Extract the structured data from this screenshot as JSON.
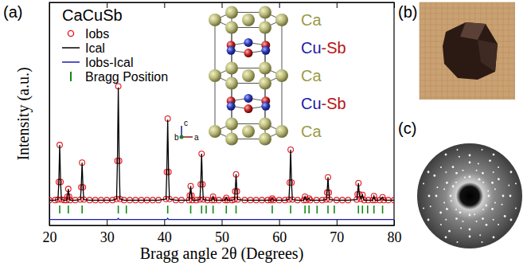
{
  "chart_data": {
    "type": "line",
    "title": "CaCuSb",
    "x_label": "Bragg angle 2θ (Degrees)",
    "y_label": "Intensity (a.u.)",
    "panel_labels": [
      "(a)",
      "(b)",
      "(c)"
    ],
    "x": [
      20,
      21,
      21.5,
      21.65,
      21.8,
      21.95,
      22.1,
      22.6,
      23.0,
      23.15,
      23.3,
      23.45,
      23.6,
      24.5,
      25.4,
      25.55,
      25.7,
      25.85,
      26.0,
      27,
      28,
      29,
      30,
      31,
      31.7,
      31.85,
      32.0,
      32.15,
      32.3,
      33,
      34,
      35,
      36,
      37,
      38,
      39,
      40.3,
      40.45,
      40.6,
      40.75,
      40.9,
      42,
      43,
      44.3,
      44.45,
      44.6,
      44.75,
      44.9,
      45.6,
      46.2,
      46.35,
      46.5,
      46.65,
      46.8,
      47.5,
      48.3,
      48.5,
      48.7,
      49.5,
      50.6,
      50.8,
      51.0,
      51.8,
      52.2,
      52.35,
      52.5,
      52.65,
      52.8,
      54,
      55,
      56,
      57,
      58,
      58.6,
      58.8,
      59.0,
      60,
      61,
      61.7,
      61.85,
      62.0,
      62.15,
      62.3,
      63.2,
      64.3,
      64.5,
      64.7,
      65.2,
      65.4,
      66.5,
      67.5,
      68.2,
      68.35,
      68.5,
      68.65,
      68.8,
      70,
      71,
      72,
      73.5,
      73.65,
      73.8,
      73.95,
      74.2,
      74.5,
      74.8,
      75.5,
      76.3,
      76.5,
      76.7,
      77.5,
      78.0,
      78.2,
      79,
      80
    ],
    "series": [
      {
        "name": "Iobs",
        "type": "scatter",
        "marker": "circle",
        "color": "#e0141e",
        "values": [
          3,
          3,
          4,
          34,
          97,
          34,
          4,
          3,
          3,
          9,
          22,
          9,
          3,
          3,
          4,
          25,
          67,
          25,
          4,
          3,
          3,
          3,
          3,
          3,
          5,
          70,
          197,
          70,
          5,
          3,
          3,
          3,
          3,
          3,
          3,
          3,
          5,
          51,
          142,
          51,
          5,
          3,
          3,
          3,
          11,
          27,
          11,
          3,
          3,
          4,
          30,
          82,
          30,
          4,
          3,
          3,
          9,
          3,
          3,
          3,
          7,
          3,
          3,
          4,
          18,
          47,
          18,
          4,
          3,
          3,
          3,
          3,
          3,
          3,
          6,
          3,
          3,
          3,
          4,
          33,
          89,
          33,
          4,
          3,
          3,
          9,
          3,
          6,
          3,
          3,
          3,
          4,
          16,
          42,
          16,
          4,
          3,
          3,
          3,
          4,
          13,
          32,
          13,
          5,
          12,
          3,
          3,
          3,
          10,
          3,
          3,
          8,
          3,
          3,
          3
        ]
      },
      {
        "name": "Ical",
        "type": "line",
        "color": "#000000",
        "values": [
          3,
          3,
          4,
          34,
          97,
          34,
          4,
          3,
          3,
          9,
          22,
          9,
          3,
          3,
          4,
          25,
          67,
          25,
          4,
          3,
          3,
          3,
          3,
          3,
          5,
          70,
          195,
          70,
          5,
          3,
          3,
          3,
          3,
          3,
          3,
          3,
          5,
          51,
          140,
          51,
          5,
          3,
          3,
          3,
          11,
          27,
          11,
          3,
          3,
          4,
          30,
          82,
          30,
          4,
          3,
          3,
          9,
          3,
          3,
          3,
          7,
          3,
          3,
          4,
          18,
          47,
          18,
          4,
          3,
          3,
          3,
          3,
          3,
          3,
          6,
          3,
          3,
          3,
          4,
          33,
          89,
          33,
          4,
          3,
          3,
          9,
          3,
          6,
          3,
          3,
          3,
          4,
          16,
          42,
          16,
          4,
          3,
          3,
          3,
          4,
          13,
          32,
          13,
          5,
          12,
          3,
          3,
          3,
          10,
          3,
          3,
          8,
          3,
          3,
          3
        ]
      },
      {
        "name": "Iobs-Ical",
        "type": "line",
        "color": "#1c1cb0",
        "values": [
          -30,
          -30,
          -30,
          -30,
          -30,
          -30,
          -30,
          -30,
          -30,
          -30,
          -30,
          -30,
          -30,
          -30,
          -30,
          -30,
          -30,
          -30,
          -30,
          -30,
          -30,
          -30,
          -30,
          -30,
          -30,
          -30,
          -28,
          -30,
          -30,
          -30,
          -30,
          -30,
          -30,
          -30,
          -30,
          -30,
          -30,
          -30,
          -28,
          -30,
          -30,
          -30,
          -30,
          -30,
          -30,
          -30,
          -30,
          -30,
          -30,
          -30,
          -30,
          -30,
          -30,
          -30,
          -30,
          -30,
          -30,
          -30,
          -30,
          -30,
          -30,
          -30,
          -30,
          -30,
          -30,
          -30,
          -30,
          -30,
          -30,
          -30,
          -30,
          -30,
          -30,
          -30,
          -30,
          -30,
          -30,
          -30,
          -30,
          -30,
          -30,
          -30,
          -30,
          -30,
          -30,
          -30,
          -30,
          -30,
          -30,
          -30,
          -30,
          -30,
          -30,
          -30,
          -30,
          -30,
          -30,
          -30,
          -30,
          -30,
          -30,
          -30,
          -30,
          -30,
          -30,
          -30,
          -30,
          -30,
          -30,
          -30,
          -30,
          -30,
          -30,
          -30,
          -30
        ]
      },
      {
        "name": "Bragg Position",
        "type": "tick",
        "marker": "vline",
        "color": "#138a13",
        "x": [
          21.8,
          23.3,
          25.7,
          32.0,
          33.4,
          40.6,
          44.6,
          46.5,
          47.3,
          48.5,
          50.8,
          52.5,
          58.8,
          62.0,
          64.5,
          65.2,
          66.6,
          68.5,
          69.6,
          73.8,
          74.5,
          75.4,
          76.5,
          78.0
        ],
        "values": [
          -13,
          -13,
          -13,
          -13,
          -13,
          -13,
          -13,
          -13,
          -13,
          -13,
          -13,
          -13,
          -13,
          -13,
          -13,
          -13,
          -13,
          -13,
          -13,
          -13,
          -13,
          -13,
          -13,
          -13
        ]
      }
    ],
    "xlim": [
      20,
      80
    ],
    "ylim": [
      -40,
      340
    ],
    "xticks": [
      20,
      30,
      40,
      50,
      60,
      70,
      80
    ],
    "yticks": [],
    "tick_labels": "x",
    "legend": "upper left",
    "inset": {
      "axes": [
        "a",
        "b",
        "c"
      ],
      "layers": [
        [
          {
            "text": "Ca",
            "color": "#9a9a48"
          }
        ],
        [
          {
            "text": "Cu",
            "color": "#1a1aa8"
          },
          {
            "text": "-Sb",
            "color": "#b81515"
          }
        ],
        [
          {
            "text": "Ca",
            "color": "#9a9a48"
          }
        ],
        [
          {
            "text": "Cu",
            "color": "#1a1aa8"
          },
          {
            "text": "-Sb",
            "color": "#b81515"
          }
        ],
        [
          {
            "text": "Ca",
            "color": "#9a9a48"
          }
        ]
      ]
    }
  }
}
